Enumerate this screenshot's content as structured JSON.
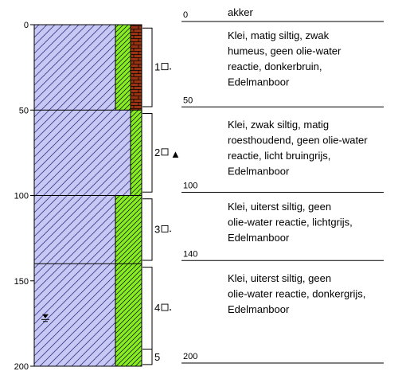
{
  "depth_axis": {
    "ticks": [
      {
        "depth": 0,
        "label": "0"
      },
      {
        "depth": 50,
        "label": "50"
      },
      {
        "depth": 100,
        "label": "100"
      },
      {
        "depth": 150,
        "label": "150"
      },
      {
        "depth": 200,
        "label": "200"
      }
    ]
  },
  "groundwater_level_depth": 171,
  "layers": [
    {
      "top": 0,
      "bottom": 50,
      "silt_column": "wide",
      "humus_column": true
    },
    {
      "top": 50,
      "bottom": 100,
      "silt_column": "narrow",
      "humus_column": false
    },
    {
      "top": 100,
      "bottom": 140,
      "silt_column": "wide",
      "humus_column": false
    },
    {
      "top": 140,
      "bottom": 200,
      "silt_column": "wide",
      "humus_column": false
    }
  ],
  "samples": [
    {
      "top": 2,
      "bottom": 48,
      "label": "1",
      "extra_symbol": ""
    },
    {
      "top": 52,
      "bottom": 98,
      "label": "2",
      "extra_symbol": "▲"
    },
    {
      "top": 102,
      "bottom": 138,
      "label": "3",
      "extra_symbol": ""
    },
    {
      "top": 142,
      "bottom": 190,
      "label": "4",
      "extra_symbol": ""
    },
    {
      "top": 190,
      "bottom": 199,
      "label": "5",
      "extra_symbol": ""
    }
  ],
  "descriptions": [
    {
      "depth_label": "0",
      "text_lines": [
        "akker"
      ]
    },
    {
      "depth_label": "50",
      "text_lines": [
        "Klei, matig siltig, zwak",
        "humeus, geen olie-water",
        "reactie, donkerbruin,",
        "Edelmanboor"
      ]
    },
    {
      "depth_label": "100",
      "text_lines": [
        "Klei, zwak siltig, matig",
        "roesthoudend, geen olie-water",
        "reactie, licht bruingrijs,",
        "Edelmanboor"
      ]
    },
    {
      "depth_label": "140",
      "text_lines": [
        "Klei, uiterst siltig, geen",
        "olie-water reactie, lichtgrijs,",
        "Edelmanboor"
      ]
    },
    {
      "depth_label": "200",
      "text_lines": [
        "Klei, uiterst siltig, geen",
        "olie-water reactie, donkergrijs,",
        "Edelmanboor"
      ]
    }
  ],
  "colors": {
    "clay": "#c8c8f5",
    "clay_hatch": "#3a3a8a",
    "silt": "#88ee22",
    "humus": "#993311",
    "line": "#000000"
  }
}
